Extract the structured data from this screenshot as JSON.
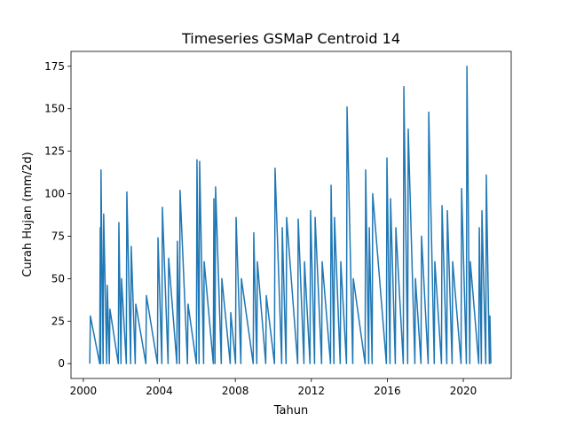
{
  "chart_data": {
    "type": "line",
    "title": "Timeseries GSMaP Centroid 14",
    "xlabel": "Tahun",
    "ylabel": "Curah Hujan (mm/2d)",
    "xlim": [
      1999.35,
      2022.52
    ],
    "xticks": [
      2000,
      2004,
      2008,
      2012,
      2016,
      2020
    ],
    "ylim": [
      -8.75,
      183.75
    ],
    "yticks": [
      0,
      25,
      50,
      75,
      100,
      125,
      150,
      175
    ],
    "series": [
      {
        "color": "#1f77b4",
        "x": [
          2000.34,
          2000.37,
          2000.86,
          2000.89,
          2000.91,
          2000.93,
          2001.04,
          2001.07,
          2001.23,
          2001.26,
          2001.37,
          2001.4,
          2001.84,
          2001.87,
          2001.98,
          2002.01,
          2002.26,
          2002.29,
          2002.49,
          2002.52,
          2002.73,
          2002.76,
          2003.29,
          2003.32,
          2003.9,
          2003.93,
          2004.13,
          2004.16,
          2004.46,
          2004.49,
          2004.92,
          2004.95,
          2005.06,
          2005.09,
          2005.48,
          2005.51,
          2005.95,
          2005.98,
          2006.09,
          2006.12,
          2006.33,
          2006.36,
          2006.84,
          2006.87,
          2006.93,
          2006.96,
          2007.26,
          2007.29,
          2007.73,
          2007.76,
          2008.01,
          2008.04,
          2008.29,
          2008.32,
          2008.94,
          2008.97,
          2009.13,
          2009.16,
          2009.6,
          2009.63,
          2010.06,
          2010.09,
          2010.44,
          2010.47,
          2010.67,
          2010.7,
          2011.28,
          2011.31,
          2011.61,
          2011.64,
          2011.93,
          2011.96,
          2012.17,
          2012.2,
          2012.54,
          2012.57,
          2013.01,
          2013.04,
          2013.19,
          2013.22,
          2013.52,
          2013.55,
          2013.85,
          2013.88,
          2014.18,
          2014.21,
          2014.83,
          2014.86,
          2015.02,
          2015.05,
          2015.2,
          2015.23,
          2015.95,
          2015.98,
          2016.14,
          2016.17,
          2016.42,
          2016.45,
          2016.84,
          2016.87,
          2017.07,
          2017.1,
          2017.45,
          2017.48,
          2017.77,
          2017.8,
          2018.15,
          2018.18,
          2018.47,
          2018.5,
          2018.85,
          2018.88,
          2019.13,
          2019.16,
          2019.41,
          2019.44,
          2019.88,
          2019.91,
          2020.16,
          2020.19,
          2020.34,
          2020.37,
          2020.81,
          2020.84,
          2020.95,
          2020.98,
          2021.18,
          2021.21,
          2021.37,
          2021.4,
          2021.45
        ],
        "values": [
          0,
          28,
          0,
          80,
          0,
          114,
          0,
          88,
          0,
          46,
          0,
          32,
          0,
          83,
          0,
          50,
          0,
          101,
          0,
          69,
          0,
          35,
          0,
          40,
          0,
          74,
          0,
          92,
          0,
          62,
          0,
          72,
          0,
          102,
          0,
          35,
          0,
          120,
          0,
          119,
          0,
          60,
          0,
          97,
          0,
          104,
          0,
          50,
          0,
          30,
          0,
          86,
          0,
          50,
          0,
          77,
          0,
          60,
          0,
          40,
          0,
          115,
          0,
          80,
          0,
          86,
          0,
          85,
          0,
          60,
          0,
          90,
          0,
          86,
          0,
          60,
          0,
          105,
          0,
          86,
          0,
          60,
          0,
          151,
          0,
          50,
          0,
          114,
          0,
          80,
          0,
          100,
          0,
          121,
          0,
          97,
          0,
          80,
          0,
          163,
          0,
          138,
          0,
          50,
          0,
          75,
          0,
          148,
          0,
          60,
          0,
          93,
          0,
          90,
          0,
          60,
          0,
          103,
          0,
          175,
          0,
          60,
          0,
          80,
          0,
          90,
          0,
          111,
          0,
          28,
          0
        ]
      }
    ]
  }
}
